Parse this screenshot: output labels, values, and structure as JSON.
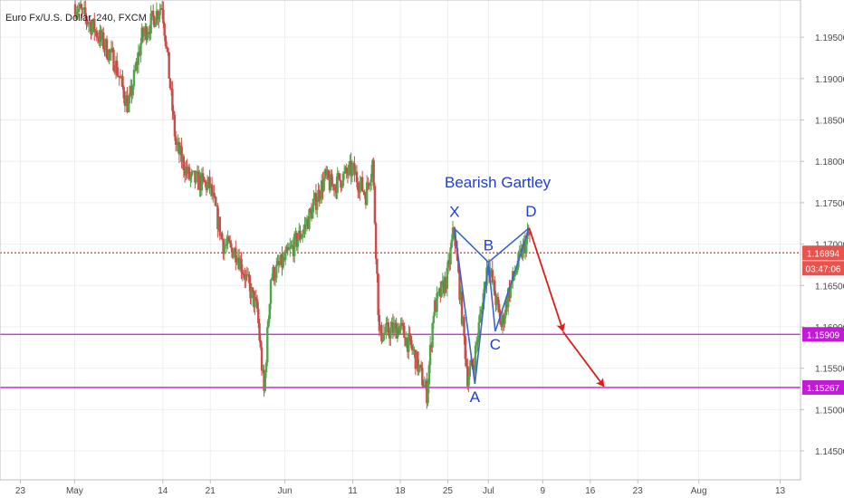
{
  "chart_data": {
    "type": "candlestick",
    "title": "Euro Fx/U.S. Dollar, 240, FXCM",
    "pattern_title": "Bearish Gartley",
    "ylim": [
      1.1415,
      1.1995
    ],
    "y_ticks": [
      "1.19500",
      "1.19000",
      "1.18500",
      "1.18000",
      "1.17500",
      "1.17000",
      "1.16500",
      "1.16000",
      "1.15500",
      "1.15000",
      "1.14500"
    ],
    "y_tick_values": [
      1.195,
      1.19,
      1.185,
      1.18,
      1.175,
      1.17,
      1.165,
      1.16,
      1.155,
      1.15,
      1.145
    ],
    "x_axis_start": "2018-04-20",
    "x_axis_end": "2018-08-16",
    "x_ticks": [
      {
        "label": "23",
        "date": "2018-04-23"
      },
      {
        "label": "May",
        "date": "2018-05-01"
      },
      {
        "label": "14",
        "date": "2018-05-14"
      },
      {
        "label": "21",
        "date": "2018-05-21"
      },
      {
        "label": "Jun",
        "date": "2018-06-01"
      },
      {
        "label": "11",
        "date": "2018-06-11"
      },
      {
        "label": "18",
        "date": "2018-06-18"
      },
      {
        "label": "25",
        "date": "2018-06-25"
      },
      {
        "label": "Jul",
        "date": "2018-07-01"
      },
      {
        "label": "9",
        "date": "2018-07-09"
      },
      {
        "label": "16",
        "date": "2018-07-16"
      },
      {
        "label": "23",
        "date": "2018-07-23"
      },
      {
        "label": "Aug",
        "date": "2018-08-01"
      },
      {
        "label": "13",
        "date": "2018-08-13"
      }
    ],
    "price_path": [
      {
        "date": "2018-05-01",
        "price": 1.199
      },
      {
        "date": "2018-05-04",
        "price": 1.196
      },
      {
        "date": "2018-05-07",
        "price": 1.192
      },
      {
        "date": "2018-05-09",
        "price": 1.1865
      },
      {
        "date": "2018-05-11",
        "price": 1.195
      },
      {
        "date": "2018-05-14",
        "price": 1.199
      },
      {
        "date": "2018-05-16",
        "price": 1.182
      },
      {
        "date": "2018-05-18",
        "price": 1.178
      },
      {
        "date": "2018-05-21",
        "price": 1.177
      },
      {
        "date": "2018-05-23",
        "price": 1.17
      },
      {
        "date": "2018-05-25",
        "price": 1.169
      },
      {
        "date": "2018-05-28",
        "price": 1.162
      },
      {
        "date": "2018-05-29",
        "price": 1.152
      },
      {
        "date": "2018-05-30",
        "price": 1.166
      },
      {
        "date": "2018-06-01",
        "price": 1.168
      },
      {
        "date": "2018-06-04",
        "price": 1.172
      },
      {
        "date": "2018-06-07",
        "price": 1.178
      },
      {
        "date": "2018-06-08",
        "price": 1.177
      },
      {
        "date": "2018-06-11",
        "price": 1.179
      },
      {
        "date": "2018-06-13",
        "price": 1.176
      },
      {
        "date": "2018-06-14",
        "price": 1.18
      },
      {
        "date": "2018-06-15",
        "price": 1.159
      },
      {
        "date": "2018-06-18",
        "price": 1.16
      },
      {
        "date": "2018-06-20",
        "price": 1.157
      },
      {
        "date": "2018-06-22",
        "price": 1.152
      },
      {
        "date": "2018-06-23",
        "price": 1.162
      },
      {
        "date": "2018-06-25",
        "price": 1.166
      },
      {
        "date": "2018-06-26",
        "price": 1.172
      },
      {
        "date": "2018-06-28",
        "price": 1.154
      },
      {
        "date": "2018-06-29",
        "price": 1.156
      },
      {
        "date": "2018-07-01",
        "price": 1.168
      },
      {
        "date": "2018-07-03",
        "price": 1.16
      },
      {
        "date": "2018-07-04",
        "price": 1.164
      },
      {
        "date": "2018-07-06",
        "price": 1.169
      },
      {
        "date": "2018-07-07",
        "price": 1.171
      }
    ],
    "pattern_points": [
      {
        "label": "X",
        "date": "2018-06-26",
        "price": 1.17185
      },
      {
        "label": "A",
        "date": "2018-06-29",
        "price": 1.1531
      },
      {
        "label": "B",
        "date": "2018-07-01",
        "price": 1.1678
      },
      {
        "label": "C",
        "date": "2018-07-02",
        "price": 1.15945
      },
      {
        "label": "D",
        "date": "2018-07-07",
        "price": 1.17195
      }
    ],
    "projection": [
      {
        "date": "2018-07-07",
        "price": 1.17195
      },
      {
        "date": "2018-07-12",
        "price": 1.1595
      },
      {
        "date": "2018-07-12",
        "price": 1.1594
      },
      {
        "date": "2018-07-18",
        "price": 1.15282
      }
    ],
    "levels": [
      {
        "name": "current",
        "value": 1.16894,
        "label": "1.16894",
        "color": "#e8534d",
        "style": "dotted"
      },
      {
        "name": "support-1",
        "value": 1.15909,
        "label": "1.15909",
        "color": "#c21bd6",
        "style": "solid"
      },
      {
        "name": "support-2",
        "value": 1.15267,
        "label": "1.15267",
        "color": "#c21bd6",
        "style": "solid"
      }
    ],
    "countdown": "03:47:06",
    "grid": true,
    "colors": {
      "up": "#52a34a",
      "down": "#cc4b48",
      "pattern": "#3a66c8",
      "projection": "#e01b1b",
      "text_blue": "#1f3fd0"
    }
  }
}
